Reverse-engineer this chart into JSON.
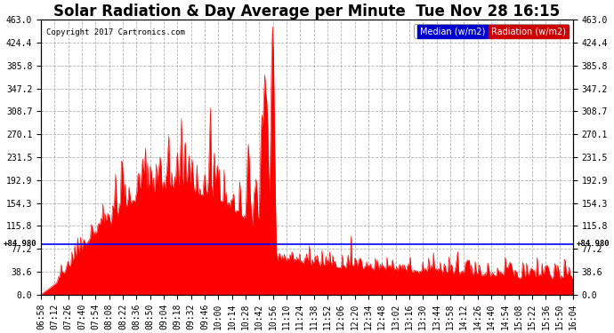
{
  "title": "Solar Radiation & Day Average per Minute  Tue Nov 28 16:15",
  "copyright": "Copyright 2017 Cartronics.com",
  "legend_median_label": "Median (w/m2)",
  "legend_radiation_label": "Radiation (w/m2)",
  "median_value": 84.98,
  "ymax": 463.0,
  "yticks": [
    0.0,
    38.6,
    77.2,
    115.8,
    154.3,
    192.9,
    231.5,
    270.1,
    308.7,
    347.2,
    385.8,
    424.4,
    463.0
  ],
  "ytick_labels": [
    "0.0",
    "38.6",
    "77.2",
    "115.8",
    "154.3",
    "192.9",
    "231.5",
    "270.1",
    "308.7",
    "347.2",
    "385.8",
    "424.4",
    "463.0"
  ],
  "background_color": "#ffffff",
  "plot_bg_color": "#ffffff",
  "grid_color": "#aaaaaa",
  "fill_color": "#ff0000",
  "line_color": "#ff0000",
  "median_line_color": "#0000ff",
  "title_fontsize": 12,
  "tick_fontsize": 7,
  "xtick_labels": [
    "06:58",
    "07:12",
    "07:26",
    "07:40",
    "07:54",
    "08:08",
    "08:22",
    "08:36",
    "08:50",
    "09:04",
    "09:18",
    "09:32",
    "09:46",
    "10:00",
    "10:14",
    "10:28",
    "10:42",
    "10:56",
    "11:10",
    "11:24",
    "11:38",
    "11:52",
    "12:06",
    "12:20",
    "12:34",
    "12:48",
    "13:02",
    "13:16",
    "13:30",
    "13:44",
    "13:58",
    "14:12",
    "14:26",
    "14:40",
    "14:54",
    "15:08",
    "15:22",
    "15:36",
    "15:50",
    "16:04"
  ]
}
